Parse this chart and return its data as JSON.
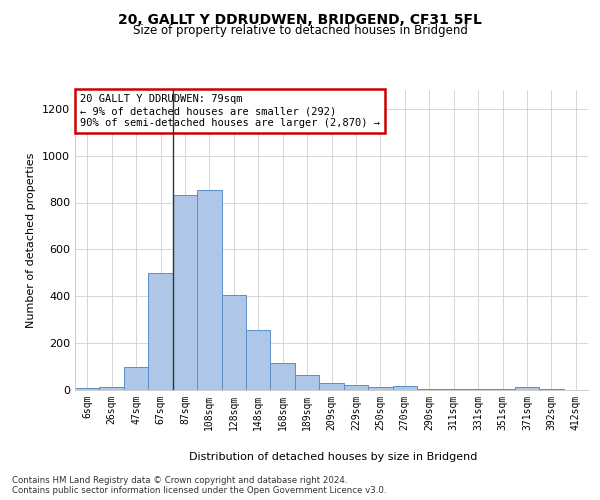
{
  "title": "20, GALLT Y DDRUDWEN, BRIDGEND, CF31 5FL",
  "subtitle": "Size of property relative to detached houses in Bridgend",
  "xlabel": "Distribution of detached houses by size in Bridgend",
  "ylabel": "Number of detached properties",
  "categories": [
    "6sqm",
    "26sqm",
    "47sqm",
    "67sqm",
    "87sqm",
    "108sqm",
    "128sqm",
    "148sqm",
    "168sqm",
    "189sqm",
    "209sqm",
    "229sqm",
    "250sqm",
    "270sqm",
    "290sqm",
    "311sqm",
    "331sqm",
    "351sqm",
    "371sqm",
    "392sqm",
    "412sqm"
  ],
  "values": [
    8,
    13,
    100,
    500,
    830,
    855,
    405,
    255,
    115,
    65,
    30,
    22,
    13,
    15,
    6,
    5,
    4,
    3,
    12,
    4,
    2
  ],
  "bar_color": "#aec6e8",
  "bar_edge_color": "#5b8fc9",
  "annotation_text": "20 GALLT Y DDRUDWEN: 79sqm\n← 9% of detached houses are smaller (292)\n90% of semi-detached houses are larger (2,870) →",
  "annotation_box_color": "#ffffff",
  "annotation_box_edge_color": "#cc0000",
  "vline_x_index": 3.5,
  "ylim": [
    0,
    1280
  ],
  "yticks": [
    0,
    200,
    400,
    600,
    800,
    1000,
    1200
  ],
  "footer_text": "Contains HM Land Registry data © Crown copyright and database right 2024.\nContains public sector information licensed under the Open Government Licence v3.0.",
  "bg_color": "#ffffff",
  "grid_color": "#d0d0d0"
}
